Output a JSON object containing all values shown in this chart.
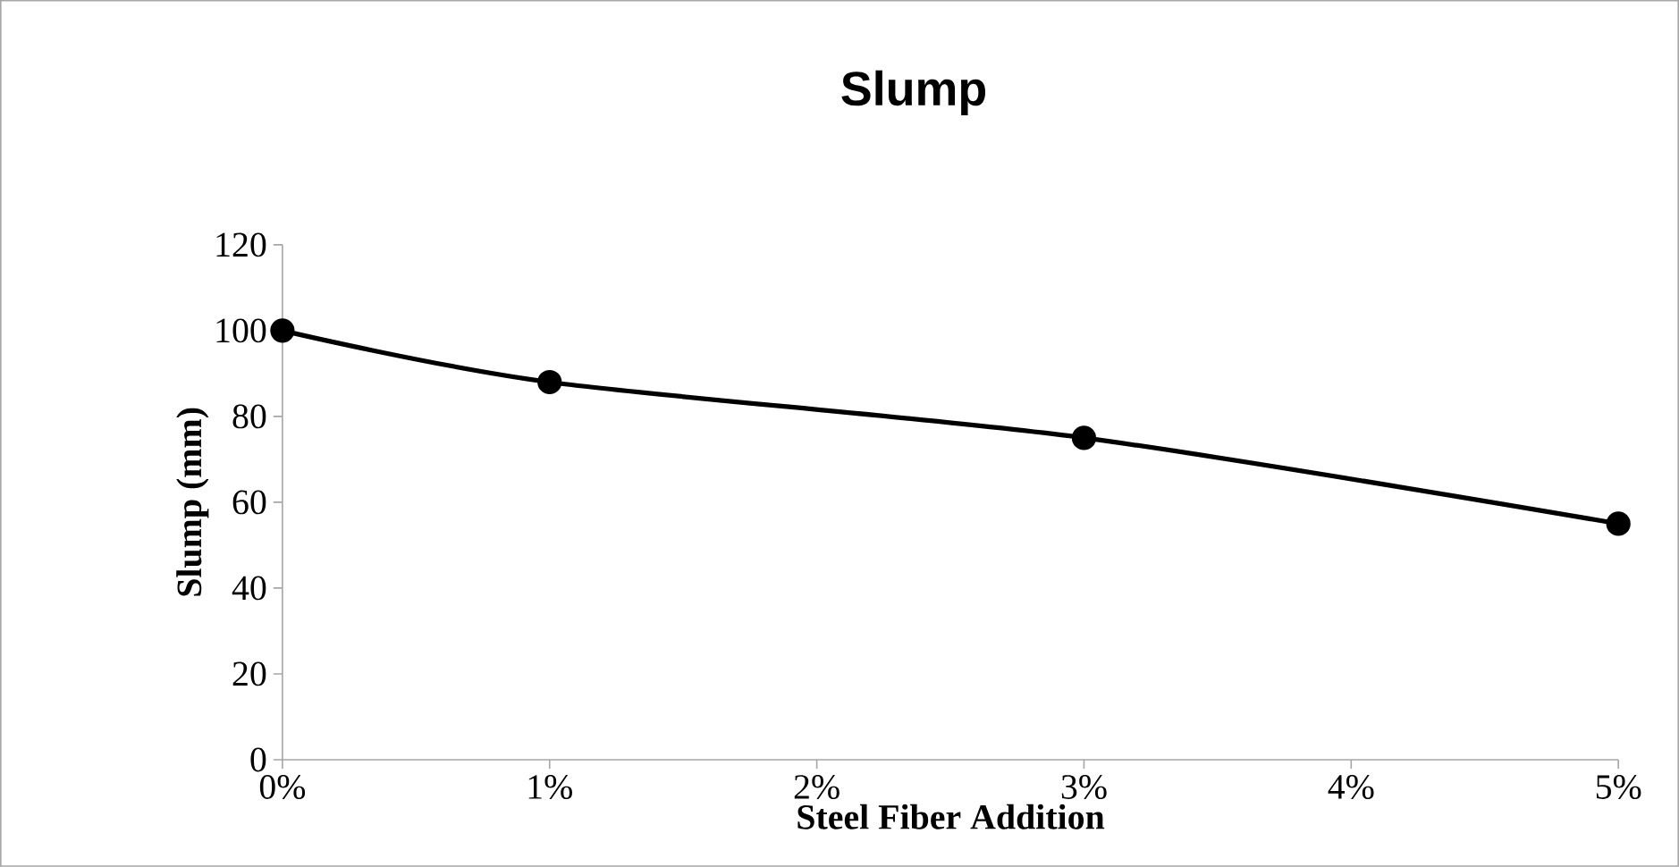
{
  "chart_data": {
    "type": "line",
    "title": "Slump",
    "xlabel": "Steel Fiber Addition",
    "ylabel": "Slump (mm)",
    "x": [
      0,
      1,
      3,
      5
    ],
    "series": [
      {
        "color": "#000000",
        "values": [
          100,
          88,
          75,
          55
        ]
      }
    ],
    "xlim": [
      0,
      5
    ],
    "xticks": [
      {
        "value": 0,
        "label": "0%"
      },
      {
        "value": 1,
        "label": "1%"
      },
      {
        "value": 2,
        "label": "2%"
      },
      {
        "value": 3,
        "label": "3%"
      },
      {
        "value": 4,
        "label": "4%"
      },
      {
        "value": 5,
        "label": "5%"
      }
    ],
    "ylim": [
      0,
      120
    ],
    "yticks": [
      0,
      20,
      40,
      60,
      80,
      100,
      120
    ],
    "marker": "circle",
    "line_style": "solid",
    "grid": false
  }
}
